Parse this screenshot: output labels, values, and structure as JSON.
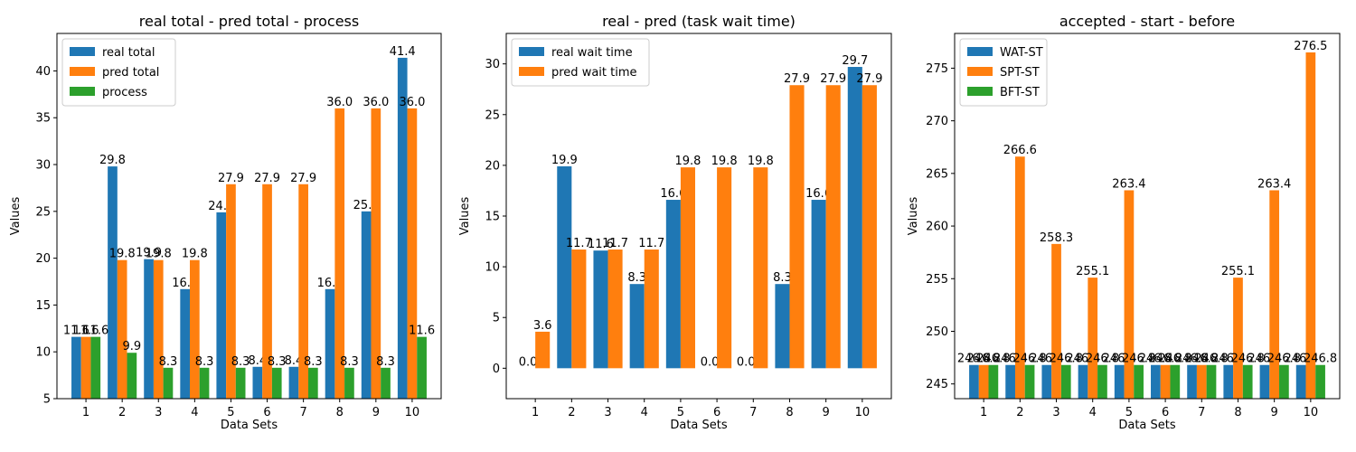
{
  "chart_data": [
    {
      "type": "bar",
      "title": "real total - pred total - process",
      "xlabel": "Data Sets",
      "ylabel": "Values",
      "categories": [
        "1",
        "2",
        "3",
        "4",
        "5",
        "6",
        "7",
        "8",
        "9",
        "10"
      ],
      "ylim": [
        5,
        44
      ],
      "yticks": [
        5,
        10,
        15,
        20,
        25,
        30,
        35,
        40
      ],
      "legend_position": "top-left",
      "grid": false,
      "series": [
        {
          "name": "real total",
          "color": "#1f77b4",
          "values": [
            11.6,
            29.8,
            19.9,
            16.7,
            24.9,
            8.4,
            8.4,
            16.7,
            25.0,
            41.4
          ]
        },
        {
          "name": "pred total",
          "color": "#ff7f0e",
          "values": [
            11.6,
            19.8,
            19.8,
            19.8,
            27.9,
            27.9,
            27.9,
            36.0,
            36.0,
            36.0
          ]
        },
        {
          "name": "process",
          "color": "#2ca02c",
          "values": [
            11.6,
            9.9,
            8.3,
            8.3,
            8.3,
            8.3,
            8.3,
            8.3,
            8.3,
            11.6
          ]
        }
      ]
    },
    {
      "type": "bar",
      "title": "real - pred (task wait time)",
      "xlabel": "Data Sets",
      "ylabel": "Values",
      "categories": [
        "1",
        "2",
        "3",
        "4",
        "5",
        "6",
        "7",
        "8",
        "9",
        "10"
      ],
      "ylim": [
        -3,
        33
      ],
      "yticks": [
        0,
        5,
        10,
        15,
        20,
        25,
        30
      ],
      "legend_position": "top-left",
      "grid": false,
      "series": [
        {
          "name": "real wait time",
          "color": "#1f77b4",
          "values": [
            0.0,
            19.9,
            11.6,
            8.3,
            16.6,
            0.0,
            0.0,
            8.3,
            16.6,
            29.7
          ]
        },
        {
          "name": "pred wait time",
          "color": "#ff7f0e",
          "values": [
            3.6,
            11.7,
            11.7,
            11.7,
            19.8,
            19.8,
            19.8,
            27.9,
            27.9,
            27.9
          ]
        }
      ]
    },
    {
      "type": "bar",
      "title": "accepted - start - before",
      "xlabel": "Data Sets",
      "ylabel": "Values",
      "categories": [
        "1",
        "2",
        "3",
        "4",
        "5",
        "6",
        "7",
        "8",
        "9",
        "10"
      ],
      "ylim": [
        243.6,
        278.3
      ],
      "yticks": [
        245,
        250,
        255,
        260,
        265,
        270,
        275
      ],
      "legend_position": "top-left",
      "grid": false,
      "series": [
        {
          "name": "WAT-ST",
          "color": "#1f77b4",
          "values": [
            246.8,
            246.8,
            246.8,
            246.8,
            246.8,
            246.8,
            246.8,
            246.8,
            246.8,
            246.8
          ]
        },
        {
          "name": "SPT-ST",
          "color": "#ff7f0e",
          "values": [
            246.8,
            266.6,
            258.3,
            255.1,
            263.4,
            246.8,
            246.8,
            255.1,
            263.4,
            276.5
          ]
        },
        {
          "name": "BFT-ST",
          "color": "#2ca02c",
          "values": [
            246.8,
            246.8,
            246.8,
            246.8,
            246.8,
            246.8,
            246.8,
            246.8,
            246.8,
            246.8
          ]
        }
      ]
    }
  ]
}
